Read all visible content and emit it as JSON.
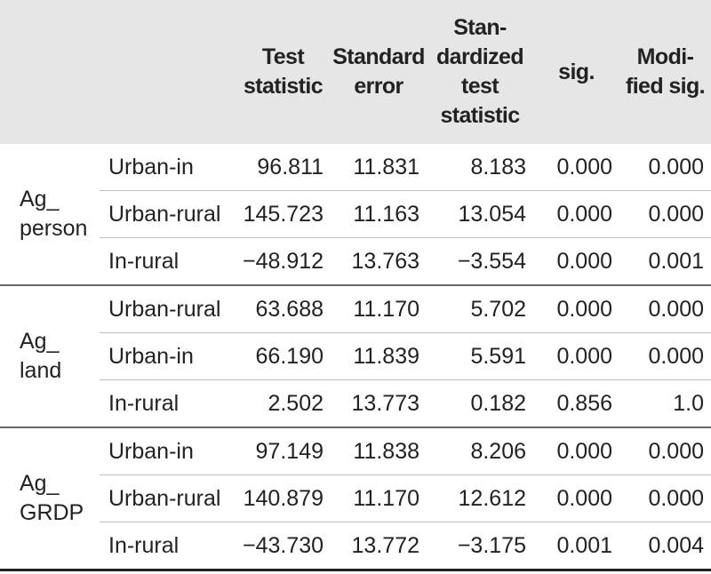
{
  "table": {
    "header": [
      [
        "Test",
        "statistic"
      ],
      [
        "Standard",
        "error"
      ],
      [
        "Stan-",
        "dardized",
        "test",
        "statistic"
      ],
      [
        "sig."
      ],
      [
        "Modi-",
        "fied sig."
      ]
    ],
    "groups": [
      {
        "label": [
          "Ag_",
          "person"
        ],
        "rows": [
          [
            "Urban-in",
            "96.811",
            "11.831",
            "8.183",
            "0.000",
            "0.000"
          ],
          [
            "Urban-rural",
            "145.723",
            "11.163",
            "13.054",
            "0.000",
            "0.000"
          ],
          [
            "In-rural",
            "−48.912",
            "13.763",
            "−3.554",
            "0.000",
            "0.001"
          ]
        ]
      },
      {
        "label": [
          "Ag_",
          "land"
        ],
        "rows": [
          [
            "Urban-rural",
            "63.688",
            "11.170",
            "5.702",
            "0.000",
            "0.000"
          ],
          [
            "Urban-in",
            "66.190",
            "11.839",
            "5.591",
            "0.000",
            "0.000"
          ],
          [
            "In-rural",
            "2.502",
            "13.773",
            "0.182",
            "0.856",
            "1.0"
          ]
        ]
      },
      {
        "label": [
          "Ag_",
          "GRDP"
        ],
        "rows": [
          [
            "Urban-in",
            "97.149",
            "11.838",
            "8.206",
            "0.000",
            "0.000"
          ],
          [
            "Urban-rural",
            "140.879",
            "11.170",
            "12.612",
            "0.000",
            "0.000"
          ],
          [
            "In-rural",
            "−43.730",
            "13.772",
            "−3.175",
            "0.001",
            "0.004"
          ]
        ]
      }
    ]
  }
}
